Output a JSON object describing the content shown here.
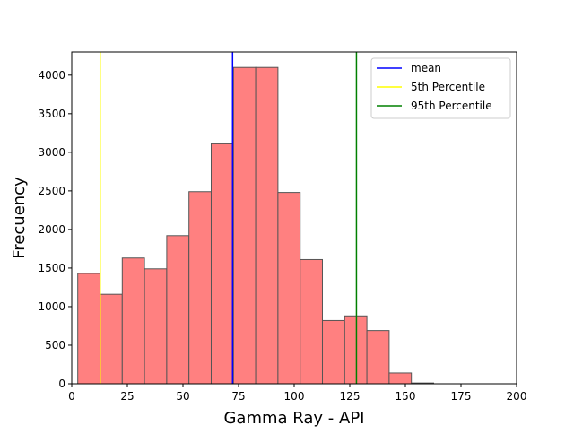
{
  "chart_data": {
    "type": "bar",
    "subtype": "histogram",
    "title": "",
    "xlabel": "Gamma Ray - API",
    "ylabel": "Frecuency",
    "xlim": [
      0,
      200
    ],
    "ylim": [
      0,
      4300
    ],
    "xticks": [
      0,
      25,
      50,
      75,
      100,
      125,
      150,
      175,
      200
    ],
    "yticks": [
      0,
      500,
      1000,
      1500,
      2000,
      2500,
      3000,
      3500,
      4000
    ],
    "grid": false,
    "bin_width": 10,
    "bin_start": 2.7,
    "bins": [
      {
        "x0": 2.7,
        "x1": 12.7,
        "count": 1430
      },
      {
        "x0": 12.7,
        "x1": 22.7,
        "count": 1160
      },
      {
        "x0": 22.7,
        "x1": 32.7,
        "count": 1630
      },
      {
        "x0": 32.7,
        "x1": 42.7,
        "count": 1490
      },
      {
        "x0": 42.7,
        "x1": 52.7,
        "count": 1920
      },
      {
        "x0": 52.7,
        "x1": 62.7,
        "count": 2490
      },
      {
        "x0": 62.7,
        "x1": 72.7,
        "count": 3110
      },
      {
        "x0": 72.7,
        "x1": 82.7,
        "count": 4100
      },
      {
        "x0": 82.7,
        "x1": 92.7,
        "count": 4100
      },
      {
        "x0": 92.7,
        "x1": 102.7,
        "count": 2480
      },
      {
        "x0": 102.7,
        "x1": 112.7,
        "count": 1610
      },
      {
        "x0": 112.7,
        "x1": 122.7,
        "count": 820
      },
      {
        "x0": 122.7,
        "x1": 132.7,
        "count": 880
      },
      {
        "x0": 132.7,
        "x1": 142.7,
        "count": 690
      },
      {
        "x0": 142.7,
        "x1": 152.7,
        "count": 140
      },
      {
        "x0": 152.7,
        "x1": 162.7,
        "count": 10
      },
      {
        "x0": 162.7,
        "x1": 172.7,
        "count": 0
      }
    ],
    "bar_color": "#ff8080",
    "bar_edge_color": "#555555",
    "vlines": [
      {
        "name": "mean",
        "x": 72.3,
        "color": "#0000ff"
      },
      {
        "name": "5th Percentile",
        "x": 12.8,
        "color": "#ffff00"
      },
      {
        "name": "95th Percentile",
        "x": 128.0,
        "color": "#008000"
      }
    ],
    "legend": {
      "placement": "top-right",
      "entries": [
        "mean",
        "5th Percentile",
        "95th Percentile"
      ]
    }
  }
}
